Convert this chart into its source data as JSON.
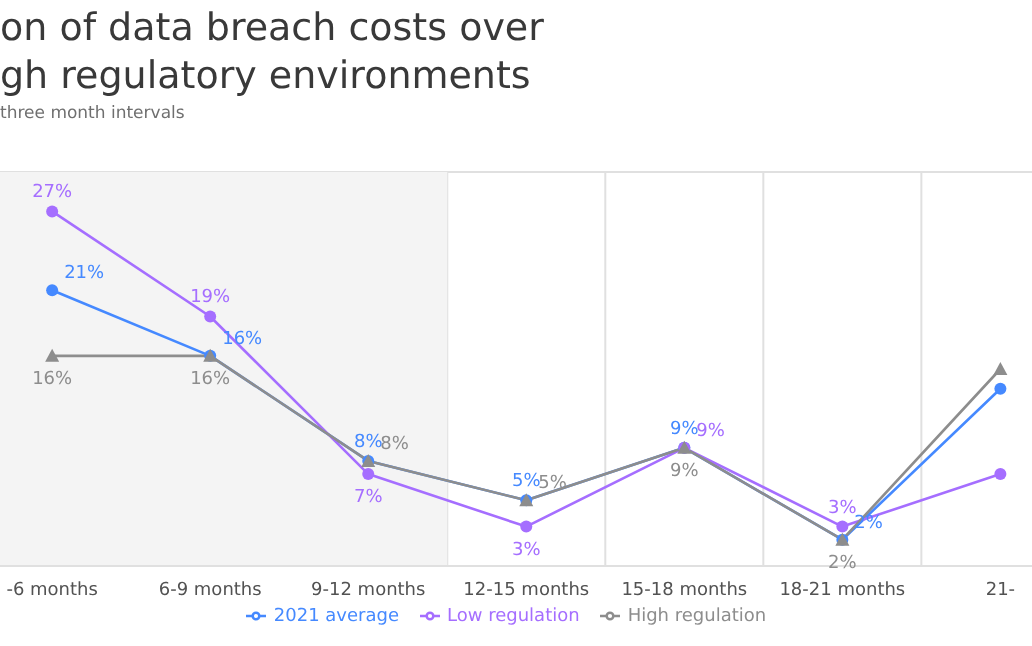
{
  "chart_data": {
    "type": "line",
    "title": "on of data breach costs over gh regulatory environments",
    "subtitle": "three month intervals",
    "categories": [
      "-6 months",
      "6-9 months",
      "9-12 months",
      "12-15 months",
      "15-18 months",
      "18-21 months",
      "21-"
    ],
    "series": [
      {
        "name": "2021 average",
        "color": "#4589ff",
        "marker": "circle",
        "values": [
          21,
          16,
          8,
          5,
          9,
          2,
          13.5
        ],
        "value_labels": [
          "21%",
          "16%",
          "8%",
          "5%",
          "9%",
          "2%",
          null
        ]
      },
      {
        "name": "Low regulation",
        "color": "#a56eff",
        "marker": "circle",
        "values": [
          27,
          19,
          7,
          3,
          9,
          3,
          7
        ],
        "value_labels": [
          "27%",
          "19%",
          "7%",
          "3%",
          "9%",
          "3%",
          null
        ]
      },
      {
        "name": "High regulation",
        "color": "#8d8d8d",
        "marker": "triangle",
        "values": [
          16,
          16,
          8,
          5,
          9,
          2,
          15
        ],
        "value_labels": [
          "16%",
          "16%",
          "8%",
          "5%",
          "9%",
          "2%",
          null
        ]
      }
    ],
    "ylim": [
      0,
      30
    ],
    "tick_labels": "x",
    "grid": true,
    "legend": "bottom",
    "line_style": "solid",
    "bands": [
      {
        "axis": "x",
        "from": "-6 months",
        "to": "9-12 months",
        "color": "#f4f4f4"
      }
    ]
  }
}
